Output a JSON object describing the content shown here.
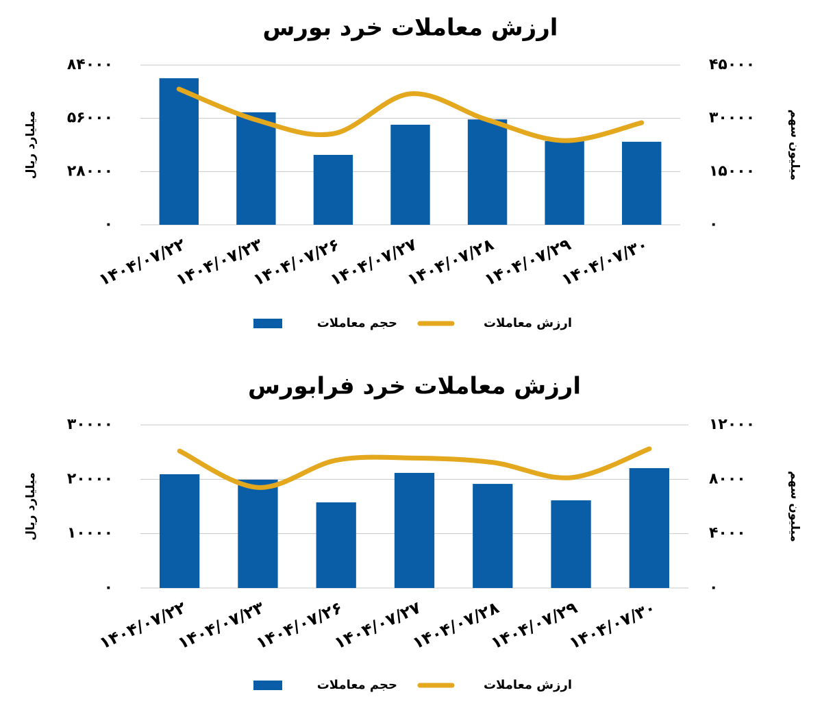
{
  "chart_data": [
    {
      "type": "combo",
      "title": "ارزش معاملات خرد بورس",
      "y_label": "میلیارد ریال",
      "y2_label": "میلیون سهم",
      "categories": [
        "۱۴۰۴/۰۷/۲۲",
        "۱۴۰۴/۰۷/۲۳",
        "۱۴۰۴/۰۷/۲۶",
        "۱۴۰۴/۰۷/۲۷",
        "۱۴۰۴/۰۷/۲۸",
        "۱۴۰۴/۰۷/۲۹",
        "۱۴۰۴/۰۷/۳۰"
      ],
      "series": [
        {
          "name": "حجم معاملات",
          "type": "bar",
          "axis": "y2",
          "color": "#0a5ea8",
          "values": [
            41300,
            31700,
            19700,
            28200,
            29700,
            23600,
            23400
          ]
        },
        {
          "name": "ارزش معاملات",
          "type": "line",
          "color": "#e3a81d",
          "values": [
            71400,
            55200,
            47900,
            68900,
            55200,
            44300,
            53700
          ]
        }
      ],
      "ylim": [
        0,
        84000
      ],
      "yticks": [
        {
          "value": 0,
          "label": "۰"
        },
        {
          "value": 28000,
          "label": "۲۸۰۰۰"
        },
        {
          "value": 56000,
          "label": "۵۶۰۰۰"
        },
        {
          "value": 84000,
          "label": "۸۴۰۰۰"
        }
      ],
      "y2lim": [
        0,
        45000
      ],
      "y2ticks": [
        {
          "value": 0,
          "label": "۰"
        },
        {
          "value": 15000,
          "label": "۱۵۰۰۰"
        },
        {
          "value": 30000,
          "label": "۳۰۰۰۰"
        },
        {
          "value": 45000,
          "label": "۴۵۰۰۰"
        }
      ],
      "grid": true,
      "legend": "bottom"
    },
    {
      "type": "combo",
      "title": "ارزش معاملات خرد فرابورس",
      "y_label": "میلیارد ریال",
      "y2_label": "میلیون سهم",
      "categories": [
        "۱۴۰۴/۰۷/۲۲",
        "۱۴۰۴/۰۷/۲۳",
        "۱۴۰۴/۰۷/۲۶",
        "۱۴۰۴/۰۷/۲۷",
        "۱۴۰۴/۰۷/۲۸",
        "۱۴۰۴/۰۷/۲۹",
        "۱۴۰۴/۰۷/۳۰"
      ],
      "series": [
        {
          "name": "حجم معاملات",
          "type": "bar",
          "axis": "y2",
          "color": "#0a5ea8",
          "values": [
            8370,
            7970,
            6300,
            8470,
            7660,
            6450,
            8820
          ]
        },
        {
          "name": "ارزش معاملات",
          "type": "line",
          "color": "#e3a81d",
          "values": [
            25200,
            18500,
            23500,
            23900,
            23100,
            20300,
            25600
          ]
        }
      ],
      "ylim": [
        0,
        30000
      ],
      "yticks": [
        {
          "value": 0,
          "label": "۰"
        },
        {
          "value": 10000,
          "label": "۱۰۰۰۰"
        },
        {
          "value": 20000,
          "label": "۲۰۰۰۰"
        },
        {
          "value": 30000,
          "label": "۳۰۰۰۰"
        }
      ],
      "y2lim": [
        0,
        12000
      ],
      "y2ticks": [
        {
          "value": 0,
          "label": "۰"
        },
        {
          "value": 4000,
          "label": "۴۰۰۰"
        },
        {
          "value": 8000,
          "label": "۸۰۰۰"
        },
        {
          "value": 12000,
          "label": "۱۲۰۰۰"
        }
      ],
      "grid": true,
      "legend": "bottom"
    }
  ]
}
